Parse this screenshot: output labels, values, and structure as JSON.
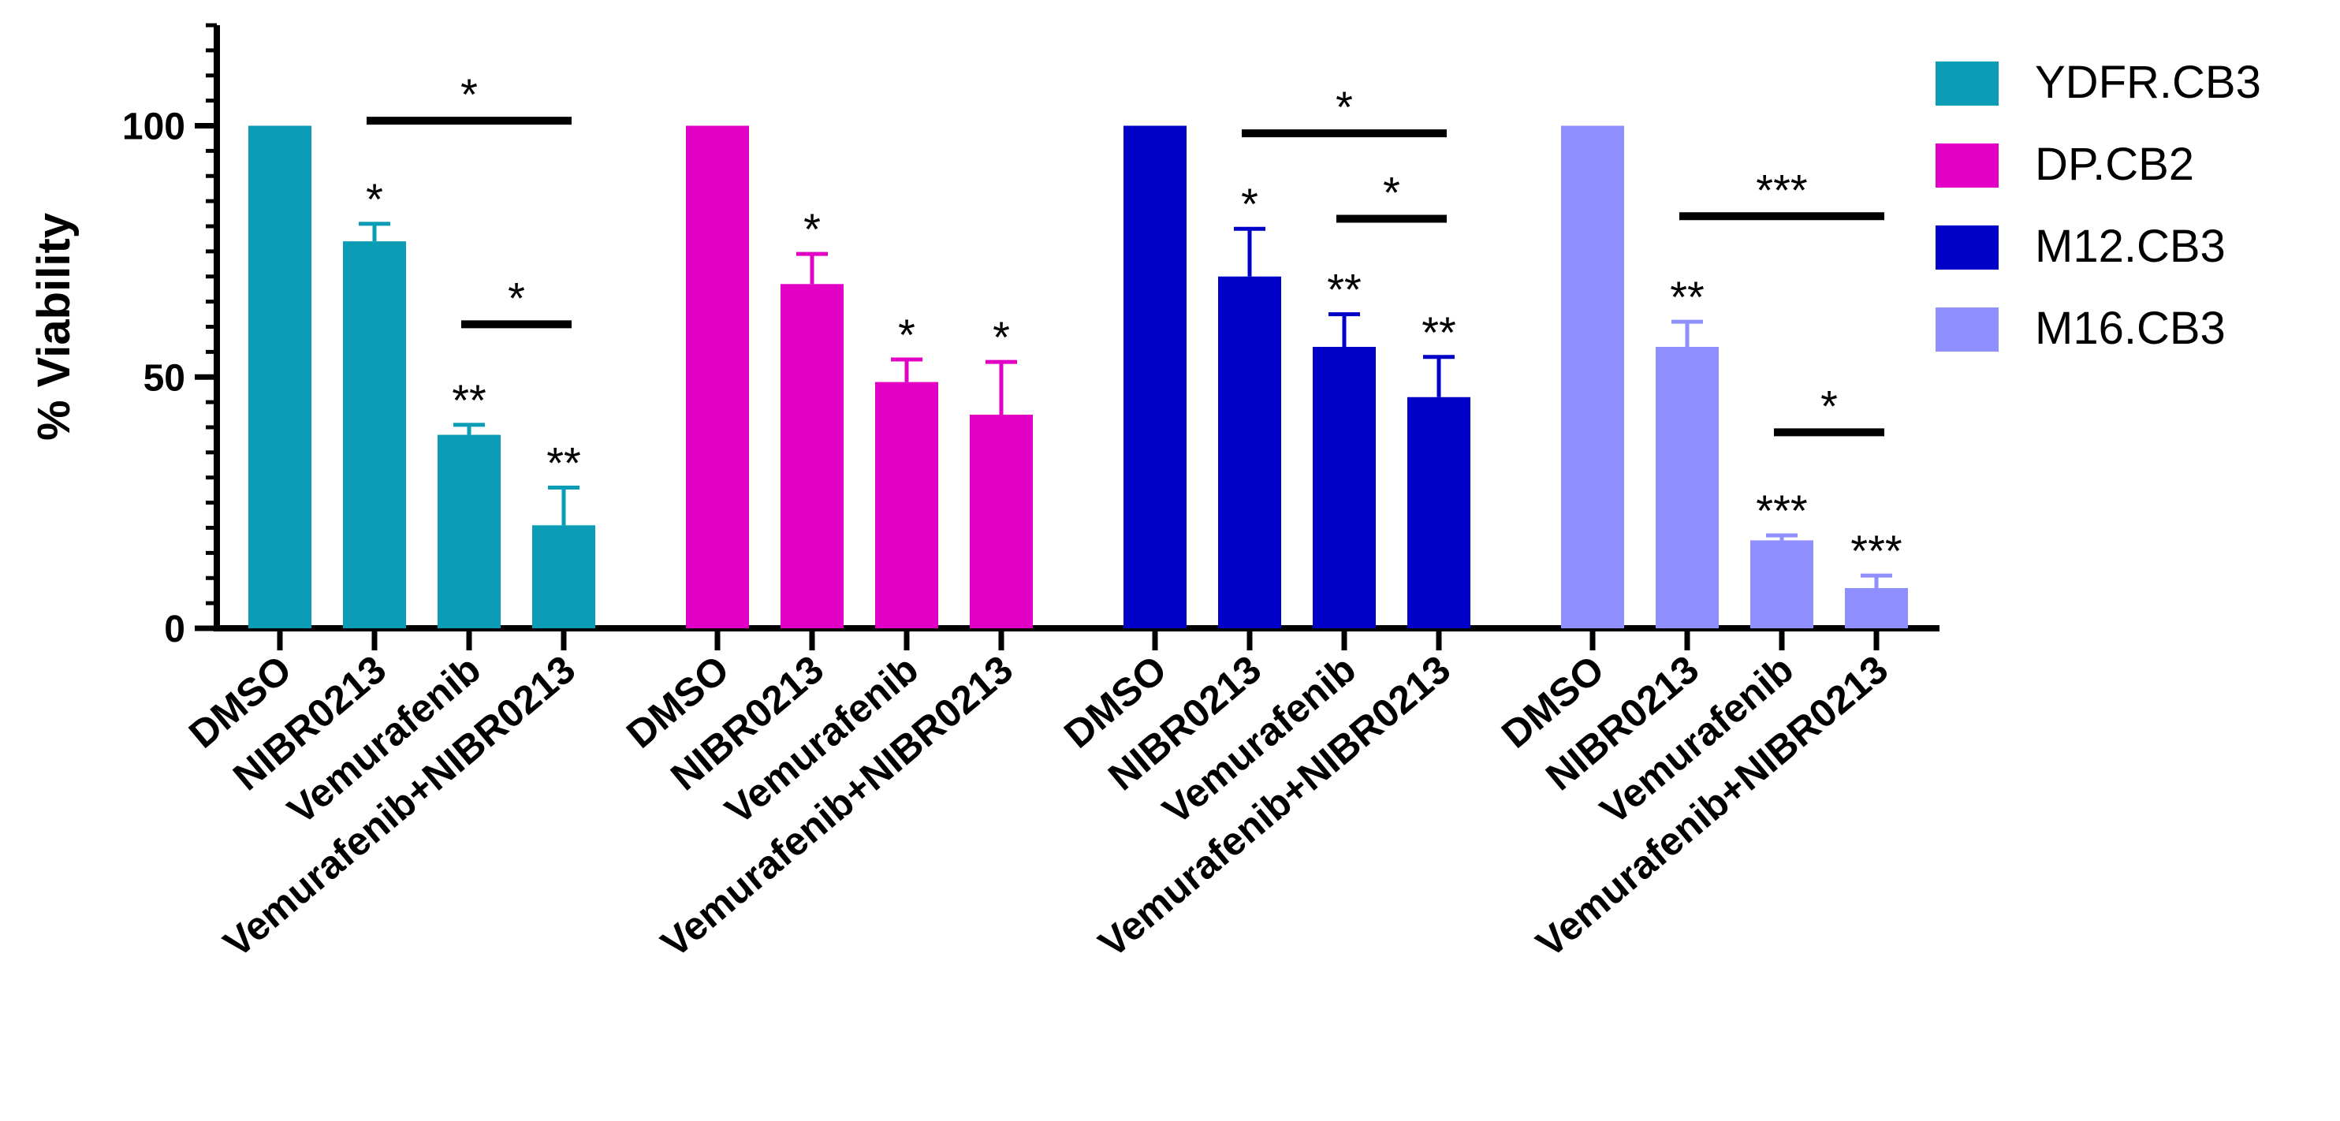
{
  "chart_data": {
    "type": "bar",
    "ylabel": "% Viability",
    "ylim": [
      0,
      120
    ],
    "yticks": [
      0,
      50,
      100
    ],
    "categories": [
      "DMSO",
      "NIBR0213",
      "Vemurafenib",
      "Vemurafenib+NIBR0213"
    ],
    "series": [
      {
        "name": "YDFR.CB3",
        "color": "#0a9db5",
        "values": [
          100,
          77,
          38.5,
          20.5
        ],
        "errors": [
          0,
          3.5,
          2,
          7.5
        ],
        "significance": [
          "",
          "*",
          "**",
          "**"
        ],
        "brackets": [
          {
            "from": 1,
            "to": 3,
            "y": 101,
            "label": "*"
          },
          {
            "from": 2,
            "to": 3,
            "y": 60.5,
            "label": "*"
          }
        ]
      },
      {
        "name": "DP.CB2",
        "color": "#e100c3",
        "values": [
          100,
          68.5,
          49,
          42.5
        ],
        "errors": [
          0,
          6,
          4.5,
          10.5
        ],
        "significance": [
          "",
          "*",
          "*",
          "*"
        ],
        "brackets": []
      },
      {
        "name": "M12.CB3",
        "color": "#0000c8",
        "values": [
          100,
          70,
          56,
          46
        ],
        "errors": [
          0,
          9.5,
          6.5,
          8
        ],
        "significance": [
          "",
          "*",
          "**",
          "**"
        ],
        "brackets": [
          {
            "from": 1,
            "to": 3,
            "y": 98.5,
            "label": "*"
          },
          {
            "from": 2,
            "to": 3,
            "y": 81.5,
            "label": "*"
          }
        ]
      },
      {
        "name": "M16.CB3",
        "color": "#8f8fff",
        "values": [
          100,
          56,
          17.5,
          8
        ],
        "errors": [
          0,
          5,
          1,
          2.5
        ],
        "significance": [
          "",
          "**",
          "***",
          "***"
        ],
        "brackets": [
          {
            "from": 1,
            "to": 3,
            "y": 82,
            "label": "***"
          },
          {
            "from": 2,
            "to": 3,
            "y": 39,
            "label": "*"
          }
        ]
      }
    ]
  }
}
